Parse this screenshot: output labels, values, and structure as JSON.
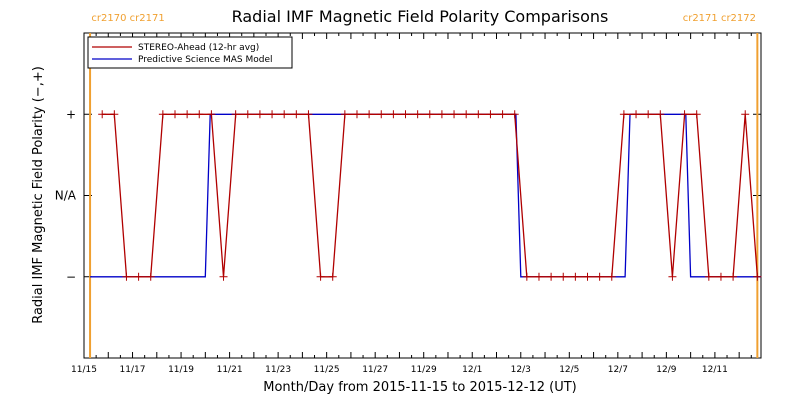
{
  "chart_data": {
    "type": "line",
    "title": "Radial IMF Magnetic Field Polarity Comparisons",
    "xlabel": "Month/Day from 2015-11-15 to 2015-12-12 (UT)",
    "ylabel": "Radial IMF Magnetic Field Polarity (−,+)",
    "x_range_days": [
      0,
      27.9
    ],
    "y_range": [
      -2,
      2
    ],
    "x_ticks": [
      {
        "day": 0,
        "label": "11/15"
      },
      {
        "day": 2,
        "label": "11/17"
      },
      {
        "day": 4,
        "label": "11/19"
      },
      {
        "day": 6,
        "label": "11/21"
      },
      {
        "day": 8,
        "label": "11/23"
      },
      {
        "day": 10,
        "label": "11/25"
      },
      {
        "day": 12,
        "label": "11/27"
      },
      {
        "day": 14,
        "label": "11/29"
      },
      {
        "day": 16,
        "label": "12/1"
      },
      {
        "day": 18,
        "label": "12/3"
      },
      {
        "day": 20,
        "label": "12/5"
      },
      {
        "day": 22,
        "label": "12/7"
      },
      {
        "day": 24,
        "label": "12/9"
      },
      {
        "day": 26,
        "label": "12/11"
      }
    ],
    "y_ticks": [
      {
        "value": 1,
        "label": "+"
      },
      {
        "value": 0,
        "label": "N/A"
      },
      {
        "value": -1,
        "label": "−"
      }
    ],
    "carrington_markers": [
      {
        "day": 0.25,
        "label": "cr2170 cr2171",
        "anchor": "end"
      },
      {
        "day": 27.75,
        "label": "cr2171 cr2172",
        "anchor": "start"
      }
    ],
    "marker_color": "#f0a030",
    "series": [
      {
        "name": "STEREO-Ahead (12-hr avg)",
        "color": "#b00000",
        "markers": true,
        "points": [
          [
            0.75,
            1
          ],
          [
            1.25,
            1
          ],
          [
            1.75,
            -1
          ],
          [
            2.25,
            -1
          ],
          [
            2.75,
            -1
          ],
          [
            3.25,
            1
          ],
          [
            3.75,
            1
          ],
          [
            4.25,
            1
          ],
          [
            4.75,
            1
          ],
          [
            5.25,
            1
          ],
          [
            5.75,
            -1
          ],
          [
            6.25,
            1
          ],
          [
            6.75,
            1
          ],
          [
            7.25,
            1
          ],
          [
            7.75,
            1
          ],
          [
            8.25,
            1
          ],
          [
            8.75,
            1
          ],
          [
            9.25,
            1
          ],
          [
            9.75,
            -1
          ],
          [
            10.25,
            -1
          ],
          [
            10.75,
            1
          ],
          [
            11.25,
            1
          ],
          [
            11.75,
            1
          ],
          [
            12.25,
            1
          ],
          [
            12.75,
            1
          ],
          [
            13.25,
            1
          ],
          [
            13.75,
            1
          ],
          [
            14.25,
            1
          ],
          [
            14.75,
            1
          ],
          [
            15.25,
            1
          ],
          [
            15.75,
            1
          ],
          [
            16.25,
            1
          ],
          [
            16.75,
            1
          ],
          [
            17.25,
            1
          ],
          [
            17.75,
            1
          ],
          [
            18.25,
            -1
          ],
          [
            18.75,
            -1
          ],
          [
            19.25,
            -1
          ],
          [
            19.75,
            -1
          ],
          [
            20.25,
            -1
          ],
          [
            20.75,
            -1
          ],
          [
            21.25,
            -1
          ],
          [
            21.75,
            -1
          ],
          [
            22.25,
            1
          ],
          [
            22.75,
            1
          ],
          [
            23.25,
            1
          ],
          [
            23.75,
            1
          ],
          [
            24.25,
            -1
          ],
          [
            24.75,
            1
          ],
          [
            25.25,
            1
          ],
          [
            25.75,
            -1
          ],
          [
            26.25,
            -1
          ],
          [
            26.75,
            -1
          ],
          [
            27.25,
            1
          ],
          [
            27.75,
            -1
          ]
        ]
      },
      {
        "name": "Predictive Science MAS Model",
        "color": "#0000c8",
        "markers": false,
        "points": [
          [
            0.25,
            -1
          ],
          [
            5.0,
            -1
          ],
          [
            5.2,
            1
          ],
          [
            17.8,
            1
          ],
          [
            18.0,
            -1
          ],
          [
            22.3,
            -1
          ],
          [
            22.5,
            1
          ],
          [
            24.8,
            1
          ],
          [
            25.0,
            -1
          ],
          [
            27.9,
            -1
          ]
        ]
      }
    ]
  }
}
